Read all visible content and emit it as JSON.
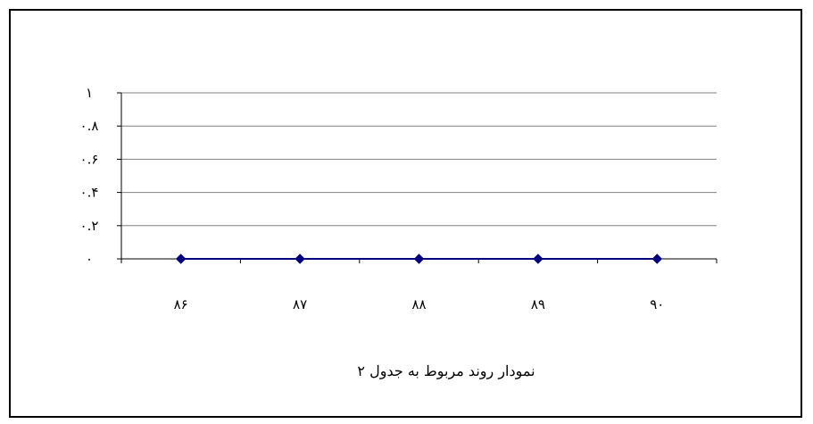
{
  "chart_data": {
    "type": "line",
    "categories": [
      "۸۶",
      "۸۷",
      "۸۸",
      "۸۹",
      "۹۰"
    ],
    "series": [
      {
        "values": [
          0,
          0,
          0,
          0,
          0
        ],
        "color": "#000080",
        "marker": "diamond"
      }
    ],
    "y_ticks": [
      "۰",
      "۰.۲",
      "۰.۴",
      "۰.۶",
      "۰.۸",
      "۱"
    ],
    "ylim": [
      0,
      1
    ],
    "grid": "horizontal",
    "caption": "نمودار روند مربوط به جدول ۲"
  }
}
